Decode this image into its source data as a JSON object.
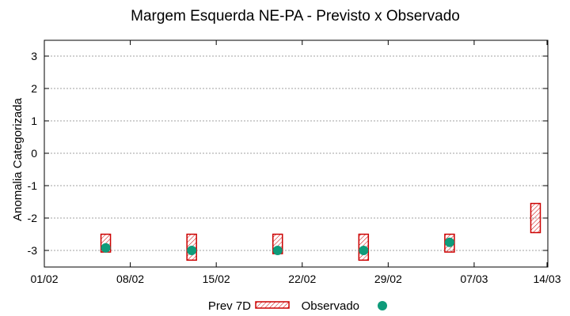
{
  "chart_data": {
    "type": "range-bar-scatter",
    "title": "Margem Esquerda NE-PA - Previsto x Observado",
    "ylabel": "Anomalia Categorizada",
    "xlabel": "",
    "xlim_days": [
      0,
      41
    ],
    "ylim": [
      -3.5,
      3.5
    ],
    "x_ticks": [
      {
        "day": 0,
        "label": "01/02"
      },
      {
        "day": 7,
        "label": "08/02"
      },
      {
        "day": 14,
        "label": "15/02"
      },
      {
        "day": 21,
        "label": "22/02"
      },
      {
        "day": 28,
        "label": "29/02"
      },
      {
        "day": 35,
        "label": "07/03"
      },
      {
        "day": 42,
        "label": "14/03"
      }
    ],
    "y_ticks": [
      {
        "value": 3,
        "label": "3"
      },
      {
        "value": 2,
        "label": "2"
      },
      {
        "value": 1,
        "label": "1"
      },
      {
        "value": 0,
        "label": "0"
      },
      {
        "value": -1,
        "label": "-1"
      },
      {
        "value": -2,
        "label": "-2"
      },
      {
        "value": -3,
        "label": "-3"
      }
    ],
    "grid": true,
    "legend_position": "bottom",
    "series": [
      {
        "name": "Prev 7D",
        "kind": "range-box",
        "color": "#cc0000",
        "points": [
          {
            "day": 5,
            "low": -3.05,
            "high": -2.5
          },
          {
            "day": 12,
            "low": -3.3,
            "high": -2.5
          },
          {
            "day": 19,
            "low": -3.1,
            "high": -2.5
          },
          {
            "day": 26,
            "low": -3.3,
            "high": -2.5
          },
          {
            "day": 33,
            "low": -3.05,
            "high": -2.5
          },
          {
            "day": 40,
            "low": -2.45,
            "high": -1.55
          }
        ]
      },
      {
        "name": "Observado",
        "kind": "point",
        "color": "#0e9b7a",
        "points": [
          {
            "day": 5,
            "value": -2.92
          },
          {
            "day": 12,
            "value": -3.0
          },
          {
            "day": 19,
            "value": -3.0
          },
          {
            "day": 26,
            "value": -3.0
          },
          {
            "day": 33,
            "value": -2.75
          }
        ]
      }
    ]
  }
}
